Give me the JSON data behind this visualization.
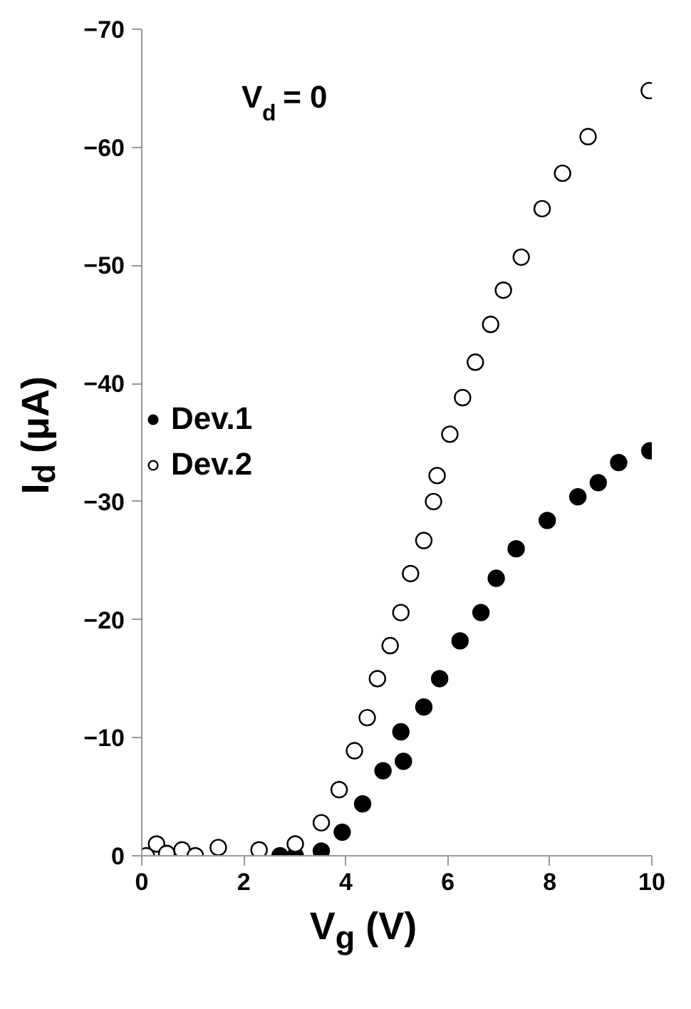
{
  "chart_data": {
    "type": "scatter",
    "xlabel": "V$_{g}$ (V)",
    "ylabel": "I$_{d}$ (μA)",
    "annotations": [
      "V$_{d}$ = 0"
    ],
    "xlim": [
      0,
      10
    ],
    "xticks": [
      0,
      2,
      4,
      6,
      8,
      10
    ],
    "ylim": [
      0,
      -70
    ],
    "yticks": [
      0,
      -10,
      -20,
      -30,
      -40,
      -50,
      -60,
      -70
    ],
    "grid": false,
    "legend": "left",
    "marker": "circle",
    "series": [
      {
        "name": "Dev.1",
        "color": "#000000",
        "x": [
          2.71,
          3.01,
          3.52,
          3.93,
          4.33,
          4.73,
          5.13,
          5.08,
          5.53,
          5.84,
          6.24,
          6.65,
          6.95,
          7.34,
          7.95,
          8.55,
          8.95,
          9.35,
          9.96
        ],
        "values": [
          0,
          0,
          -0.4,
          -2.0,
          -4.4,
          -7.2,
          -8.0,
          -10.5,
          -12.6,
          -15.0,
          -18.2,
          -20.6,
          -23.5,
          -26.0,
          -28.4,
          -30.4,
          -31.6,
          -33.3,
          -34.3
        ]
      },
      {
        "name": "Dev.2",
        "color": "#ffffff",
        "x": [
          0.09,
          0.29,
          0.49,
          0.79,
          1.05,
          1.5,
          2.3,
          3.01,
          3.52,
          3.87,
          4.17,
          4.42,
          4.62,
          4.87,
          5.08,
          5.27,
          5.53,
          5.72,
          5.79,
          6.04,
          6.29,
          6.54,
          6.84,
          7.09,
          7.44,
          7.85,
          8.25,
          8.75,
          9.95
        ],
        "values": [
          0,
          -1.0,
          -0.2,
          -0.5,
          0,
          -0.7,
          -0.5,
          -1.0,
          -2.8,
          -5.6,
          -8.9,
          -11.7,
          -15.0,
          -17.8,
          -20.6,
          -23.9,
          -26.7,
          -30.0,
          -32.2,
          -35.7,
          -38.8,
          -41.8,
          -45.0,
          -47.9,
          -50.7,
          -54.8,
          -57.8,
          -60.9,
          -64.8
        ]
      }
    ]
  }
}
